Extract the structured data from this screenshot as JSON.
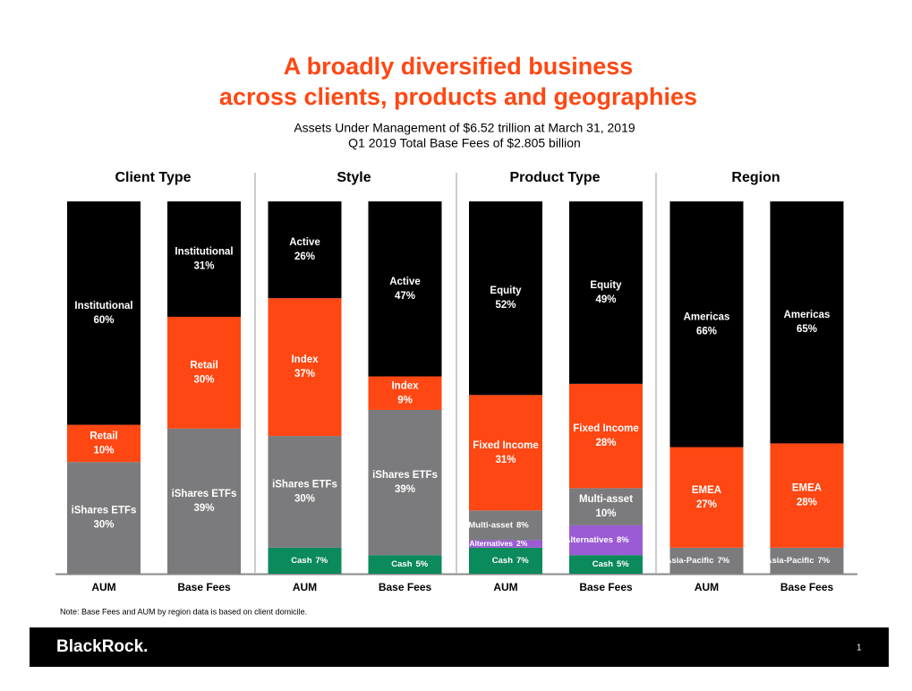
{
  "header": {
    "title": [
      "A broadly diversified business",
      "across clients, products and geographies"
    ],
    "subtitle": [
      "Assets Under Management of $6.52 trillion at March 31, 2019",
      "Q1 2019 Total Base Fees of $2.805 billion"
    ]
  },
  "chart_data": [
    {
      "type": "stacked_bar",
      "title": "Client Type",
      "categories": [
        "AUM",
        "Base Fees"
      ],
      "ylim": [
        0,
        100
      ],
      "series": [
        {
          "name": "iShares ETFs",
          "color": "#7b7b7d",
          "values": [
            30,
            39
          ],
          "value_labels": [
            "30%",
            "39%"
          ]
        },
        {
          "name": "Retail",
          "color": "#ff4713",
          "values": [
            10,
            30
          ],
          "value_labels": [
            "10%",
            "30%"
          ]
        },
        {
          "name": "Institutional",
          "color": "#000000",
          "values": [
            60,
            31
          ],
          "value_labels": [
            "60%",
            "31%"
          ]
        }
      ]
    },
    {
      "type": "stacked_bar",
      "title": "Style",
      "categories": [
        "AUM",
        "Base Fees"
      ],
      "ylim": [
        0,
        100
      ],
      "series": [
        {
          "name": "Cash",
          "color": "#0b8a5c",
          "values": [
            7,
            5
          ],
          "value_labels": [
            "7%",
            "5%"
          ]
        },
        {
          "name": "iShares ETFs",
          "color": "#7b7b7d",
          "values": [
            30,
            39
          ],
          "value_labels": [
            "30%",
            "39%"
          ]
        },
        {
          "name": "Index",
          "color": "#ff4713",
          "values": [
            37,
            9
          ],
          "value_labels": [
            "37%",
            "9%"
          ]
        },
        {
          "name": "Active",
          "color": "#000000",
          "values": [
            26,
            47
          ],
          "value_labels": [
            "26%",
            "47%"
          ]
        }
      ]
    },
    {
      "type": "stacked_bar",
      "title": "Product Type",
      "categories": [
        "AUM",
        "Base Fees"
      ],
      "ylim": [
        0,
        100
      ],
      "series": [
        {
          "name": "Cash",
          "color": "#0b8a5c",
          "values": [
            7,
            5
          ],
          "value_labels": [
            "7%",
            "5%"
          ]
        },
        {
          "name": "Alternatives",
          "color": "#9b5bd4",
          "values": [
            2,
            8
          ],
          "value_labels": [
            "2%",
            "8%"
          ]
        },
        {
          "name": "Multi-asset",
          "color": "#7b7b7d",
          "values": [
            8,
            10
          ],
          "value_labels": [
            "8%",
            "10%"
          ]
        },
        {
          "name": "Fixed Income",
          "color": "#ff4713",
          "values": [
            31,
            28
          ],
          "value_labels": [
            "31%",
            "28%"
          ]
        },
        {
          "name": "Equity",
          "color": "#000000",
          "values": [
            52,
            49
          ],
          "value_labels": [
            "52%",
            "49%"
          ]
        }
      ]
    },
    {
      "type": "stacked_bar",
      "title": "Region",
      "categories": [
        "AUM",
        "Base Fees"
      ],
      "ylim": [
        0,
        100
      ],
      "series": [
        {
          "name": "Asia-Pacific",
          "color": "#7b7b7d",
          "values": [
            7,
            7
          ],
          "value_labels": [
            "7%",
            "7%"
          ]
        },
        {
          "name": "EMEA",
          "color": "#ff4713",
          "values": [
            27,
            28
          ],
          "value_labels": [
            "27%",
            "28%"
          ]
        },
        {
          "name": "Americas",
          "color": "#000000",
          "values": [
            66,
            65
          ],
          "value_labels": [
            "66%",
            "65%"
          ]
        }
      ]
    }
  ],
  "note": "Note: Base Fees and AUM by region data is based on client domicile.",
  "footer": {
    "brand": "BlackRock.",
    "page": "1"
  }
}
